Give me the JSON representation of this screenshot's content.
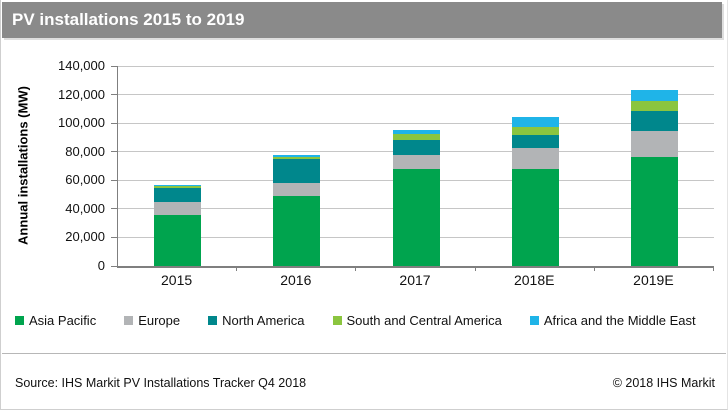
{
  "header": {
    "title": "PV installations 2015 to 2019"
  },
  "chart_data": {
    "type": "bar",
    "stacked": true,
    "title": "PV installations 2015 to 2019",
    "ylabel": "Annual installations (MW)",
    "xlabel": "",
    "ylim": [
      0,
      140000
    ],
    "ytick_step": 20000,
    "yticks": [
      "140,000",
      "120,000",
      "100,000",
      "80,000",
      "60,000",
      "40,000",
      "20,000",
      "0"
    ],
    "grid": true,
    "legend_position": "bottom",
    "categories": [
      "2015",
      "2016",
      "2017",
      "2018E",
      "2019E"
    ],
    "series": [
      {
        "name": "Asia Pacific",
        "color": "#00a44e",
        "values": [
          35500,
          49000,
          68000,
          68000,
          76000
        ]
      },
      {
        "name": "Europe",
        "color": "#b2b4b6",
        "values": [
          9000,
          9000,
          10000,
          14500,
          18500
        ]
      },
      {
        "name": "North America",
        "color": "#00878c",
        "values": [
          10000,
          17000,
          10000,
          9000,
          14000
        ]
      },
      {
        "name": "South and Central America",
        "color": "#8bc53f",
        "values": [
          1500,
          1500,
          4500,
          5500,
          7000
        ]
      },
      {
        "name": "Africa and the Middle East",
        "color": "#1fb4e8",
        "values": [
          500,
          1500,
          2500,
          7500,
          7500
        ]
      }
    ],
    "totals": [
      56500,
      78000,
      95000,
      104500,
      123000
    ]
  },
  "colors": {
    "header_bg": "#8a8a8a",
    "gridline": "#c6c6c6",
    "axis": "#7f7f7f"
  },
  "footer": {
    "source": "Source: IHS Markit PV Installations Tracker Q4 2018",
    "copyright": "© 2018 IHS Markit"
  }
}
